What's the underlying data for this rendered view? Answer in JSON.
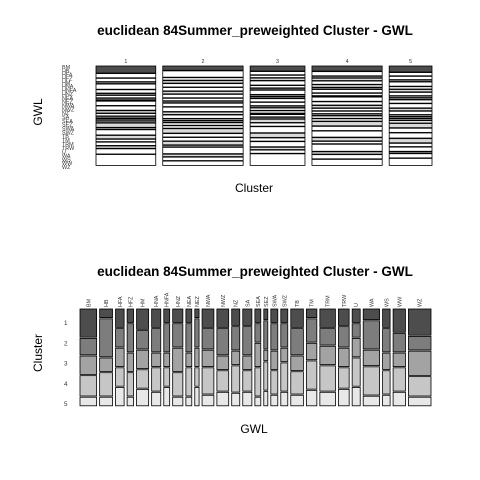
{
  "chart_data": [
    {
      "type": "mosaic",
      "title": "euclidean 84Summer_preweighted Cluster - GWL",
      "xlabel": "Cluster",
      "ylabel": "GWL",
      "categories": [
        "1",
        "2",
        "3",
        "4",
        "5"
      ],
      "column_weights": [
        0.194,
        0.261,
        0.178,
        0.228,
        0.139
      ],
      "gwl_labels": [
        "BM",
        "HB",
        "HFA",
        "HFZ",
        "HM",
        "HNA",
        "HNFA",
        "HNZ",
        "NEA",
        "NEZ",
        "NWA",
        "NWZ",
        "NZ",
        "SA",
        "SEA",
        "SEZ",
        "SWA",
        "SWZ",
        "TB",
        "TM",
        "TRM",
        "TRW",
        "U",
        "WA",
        "WS",
        "WW",
        "WZ"
      ],
      "gwl_axis_labels": [
        "BM",
        "HB",
        "HFA",
        "HFZ",
        "HM",
        "HNA",
        "HNFA",
        "HNZ",
        "NEA",
        "NEZ",
        "NWA",
        "NWZ",
        "NZ",
        "SA",
        "SEA",
        "SEZ",
        "SWA",
        "SWZ",
        "TB",
        "TM",
        "TRM",
        "TRW",
        "U",
        "WA",
        "WS",
        "WW",
        "WZ"
      ],
      "proportions_by_cluster": [
        [
          0.08,
          0.05,
          0.04,
          0.02,
          0.06,
          0.04,
          0.02,
          0.03,
          0.02,
          0.01,
          0.05,
          0.05,
          0.03,
          0.03,
          0.02,
          0.01,
          0.02,
          0.02,
          0.05,
          0.02,
          0.06,
          0.04,
          0.03,
          0.04,
          0.03,
          0.06,
          0.12
        ],
        [
          0.05,
          0.07,
          0.03,
          0.03,
          0.04,
          0.04,
          0.03,
          0.04,
          0.03,
          0.02,
          0.04,
          0.05,
          0.03,
          0.04,
          0.02,
          0.02,
          0.03,
          0.03,
          0.05,
          0.04,
          0.04,
          0.04,
          0.02,
          0.07,
          0.03,
          0.04,
          0.05
        ],
        [
          0.06,
          0.04,
          0.03,
          0.03,
          0.05,
          0.03,
          0.02,
          0.05,
          0.02,
          0.02,
          0.04,
          0.04,
          0.02,
          0.03,
          0.03,
          0.01,
          0.03,
          0.02,
          0.04,
          0.04,
          0.07,
          0.05,
          0.04,
          0.06,
          0.03,
          0.04,
          0.13
        ],
        [
          0.06,
          0.05,
          0.02,
          0.03,
          0.04,
          0.03,
          0.02,
          0.04,
          0.03,
          0.01,
          0.05,
          0.04,
          0.03,
          0.03,
          0.03,
          0.02,
          0.03,
          0.03,
          0.05,
          0.05,
          0.07,
          0.04,
          0.03,
          0.08,
          0.03,
          0.05,
          0.07
        ],
        [
          0.07,
          0.04,
          0.04,
          0.02,
          0.05,
          0.03,
          0.03,
          0.04,
          0.02,
          0.02,
          0.04,
          0.05,
          0.03,
          0.04,
          0.02,
          0.02,
          0.02,
          0.03,
          0.05,
          0.05,
          0.06,
          0.05,
          0.04,
          0.05,
          0.02,
          0.05,
          0.08
        ]
      ],
      "shades": [
        "#4d4d4d",
        "#7d7d7d",
        "#a3a3a3",
        "#c6c6c6",
        "#e8e8e8"
      ],
      "ylim": [
        0,
        1
      ]
    },
    {
      "type": "mosaic",
      "title": "euclidean 84Summer_preweighted Cluster - GWL",
      "xlabel": "GWL",
      "ylabel": "Cluster",
      "categories": [
        "BM",
        "HB",
        "HFA",
        "HFZ",
        "HM",
        "HNA",
        "HNFA",
        "HNZ",
        "NEA",
        "NEZ",
        "NWA",
        "NWZ",
        "NZ",
        "SA",
        "SEA",
        "SEZ",
        "SWA",
        "SWZ",
        "TB",
        "TM",
        "TRM",
        "TRW",
        "U",
        "WA",
        "WS",
        "WW",
        "WZ"
      ],
      "column_weights": [
        0.062,
        0.048,
        0.032,
        0.024,
        0.045,
        0.034,
        0.022,
        0.038,
        0.022,
        0.016,
        0.044,
        0.044,
        0.03,
        0.034,
        0.022,
        0.015,
        0.026,
        0.026,
        0.047,
        0.039,
        0.058,
        0.04,
        0.03,
        0.061,
        0.028,
        0.046,
        0.084
      ],
      "cluster_labels": [
        "1",
        "2",
        "3",
        "4",
        "5"
      ],
      "proportions_by_gwl": [
        [
          0.3,
          0.18,
          0.2,
          0.22,
          0.1
        ],
        [
          0.1,
          0.4,
          0.15,
          0.25,
          0.1
        ],
        [
          0.2,
          0.2,
          0.2,
          0.2,
          0.2
        ],
        [
          0.15,
          0.3,
          0.2,
          0.25,
          0.1
        ],
        [
          0.22,
          0.2,
          0.2,
          0.2,
          0.18
        ],
        [
          0.2,
          0.25,
          0.15,
          0.25,
          0.15
        ],
        [
          0.15,
          0.3,
          0.15,
          0.2,
          0.2
        ],
        [
          0.15,
          0.25,
          0.25,
          0.25,
          0.1
        ],
        [
          0.15,
          0.3,
          0.15,
          0.3,
          0.1
        ],
        [
          0.1,
          0.3,
          0.2,
          0.2,
          0.2
        ],
        [
          0.2,
          0.22,
          0.18,
          0.28,
          0.12
        ],
        [
          0.2,
          0.28,
          0.15,
          0.22,
          0.15
        ],
        [
          0.18,
          0.25,
          0.15,
          0.28,
          0.14
        ],
        [
          0.18,
          0.3,
          0.15,
          0.22,
          0.15
        ],
        [
          0.15,
          0.2,
          0.25,
          0.3,
          0.1
        ],
        [
          0.12,
          0.3,
          0.12,
          0.3,
          0.16
        ],
        [
          0.15,
          0.28,
          0.2,
          0.25,
          0.12
        ],
        [
          0.15,
          0.25,
          0.15,
          0.3,
          0.15
        ],
        [
          0.2,
          0.28,
          0.16,
          0.24,
          0.12
        ],
        [
          0.1,
          0.25,
          0.18,
          0.3,
          0.17
        ],
        [
          0.2,
          0.18,
          0.2,
          0.27,
          0.15
        ],
        [
          0.18,
          0.22,
          0.2,
          0.22,
          0.18
        ],
        [
          0.15,
          0.15,
          0.2,
          0.3,
          0.2
        ],
        [
          0.12,
          0.3,
          0.17,
          0.3,
          0.11
        ],
        [
          0.2,
          0.25,
          0.18,
          0.25,
          0.12
        ],
        [
          0.25,
          0.2,
          0.15,
          0.25,
          0.15
        ],
        [
          0.28,
          0.15,
          0.26,
          0.21,
          0.1
        ]
      ],
      "shades": [
        "#4d4d4d",
        "#7d7d7d",
        "#a3a3a3",
        "#c6c6c6",
        "#e8e8e8"
      ],
      "ylim": [
        0,
        1
      ]
    }
  ]
}
